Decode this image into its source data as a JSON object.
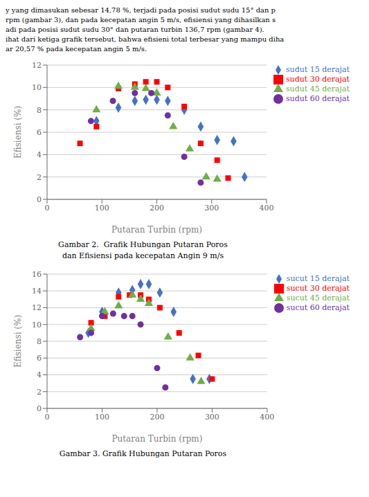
{
  "chart_data": [
    {
      "type": "scatter",
      "annotations": [
        "y yang dimasukan sebesar 14,78 %, terjadi pada posisi sudut sudu 15° dan p",
        "rpm (gambar 3), dan pada kecepatan angin 5 m/s, efisiensi yang dihasilkan s",
        "adi pada posisi sudut sudu 30° dan putaran turbin 136,7 rpm (gambar 4).",
        "ihat dari ketiga grafik tersebut, bahwa efisieni total terbesar yang mampu diha",
        "ar 20,57 % pada kecepatan angin 5 m/s."
      ],
      "title": "Gambar 2.  Grafik Hubungan Putaran Poros",
      "subtitle": "dan Efisiensi pada kecepatan Angin 9 m/s",
      "x_label": "Putaran Turbin (rpm)",
      "y_label": "Efisiensi (%)",
      "xlim": [
        0,
        400
      ],
      "ylim": [
        0,
        12
      ],
      "xticks": [
        0,
        100,
        200,
        300,
        400
      ],
      "yticks": [
        0,
        2,
        4,
        6,
        8,
        10,
        12
      ],
      "grid": true,
      "legend": "right",
      "series": [
        {
          "name": "sudut 15 derajat",
          "color": "#4472C4",
          "marker": "diamond",
          "x": [
            90,
            130,
            160,
            180,
            200,
            220,
            250,
            280,
            310,
            340,
            360
          ],
          "values": [
            7.0,
            8.2,
            8.8,
            8.9,
            8.9,
            8.8,
            8.0,
            6.5,
            5.3,
            5.2,
            2.0
          ]
        },
        {
          "name": "sudut 30 derajat",
          "color": "#FF0000",
          "marker": "square",
          "x": [
            60,
            90,
            130,
            160,
            180,
            200,
            220,
            250,
            280,
            310,
            330
          ],
          "values": [
            5.0,
            6.5,
            9.9,
            10.3,
            10.5,
            10.5,
            10.0,
            8.3,
            5.0,
            3.5,
            1.9
          ]
        },
        {
          "name": "sudut 45 derajat",
          "color": "#70AD47",
          "marker": "triangle",
          "x": [
            90,
            130,
            160,
            180,
            200,
            230,
            260,
            290,
            310
          ],
          "values": [
            8.0,
            10.1,
            10.0,
            9.9,
            9.5,
            6.5,
            4.5,
            2.0,
            1.8
          ]
        },
        {
          "name": "sudut 60 derajat",
          "color": "#7030A0",
          "marker": "circle",
          "x": [
            80,
            120,
            160,
            190,
            220,
            250,
            280
          ],
          "values": [
            7.0,
            8.8,
            9.5,
            9.5,
            7.5,
            3.8,
            1.5
          ]
        }
      ]
    },
    {
      "type": "scatter",
      "title": "Gambar 3. Grafik Hubungan Putaran Poros",
      "x_label": "Putaran Turbin (rpm)",
      "y_label": "Efisiensi (%)",
      "xlim": [
        0,
        400
      ],
      "ylim": [
        0,
        16
      ],
      "xticks": [
        0,
        100,
        200,
        300,
        400
      ],
      "yticks": [
        0,
        2,
        4,
        6,
        8,
        10,
        12,
        14,
        16
      ],
      "grid": true,
      "legend": "right",
      "series": [
        {
          "name": "sucut 15 derajat",
          "color": "#4472C4",
          "marker": "diamond",
          "x": [
            75,
            100,
            130,
            155,
            170,
            185,
            205,
            230,
            265,
            295
          ],
          "values": [
            9.0,
            11.5,
            13.8,
            14.1,
            14.8,
            14.8,
            13.8,
            11.5,
            3.5,
            3.5
          ]
        },
        {
          "name": "sucut 30 derajat",
          "color": "#FF0000",
          "marker": "square",
          "x": [
            80,
            105,
            130,
            150,
            170,
            185,
            205,
            240,
            275,
            300
          ],
          "values": [
            10.2,
            11.0,
            13.3,
            13.5,
            13.5,
            13.0,
            12.0,
            9.0,
            6.3,
            3.5
          ]
        },
        {
          "name": "sucut 45 derajat",
          "color": "#70AD47",
          "marker": "triangle",
          "x": [
            80,
            105,
            130,
            155,
            170,
            185,
            220,
            260,
            280
          ],
          "values": [
            9.5,
            11.5,
            12.2,
            13.5,
            13.0,
            12.5,
            8.5,
            6.0,
            3.2
          ]
        },
        {
          "name": "sucut 60 derajat",
          "color": "#7030A0",
          "marker": "circle",
          "x": [
            60,
            80,
            100,
            120,
            140,
            155,
            170,
            200,
            215
          ],
          "values": [
            8.5,
            9.0,
            11.0,
            11.3,
            11.0,
            11.0,
            10.0,
            4.8,
            2.5
          ]
        }
      ]
    }
  ]
}
